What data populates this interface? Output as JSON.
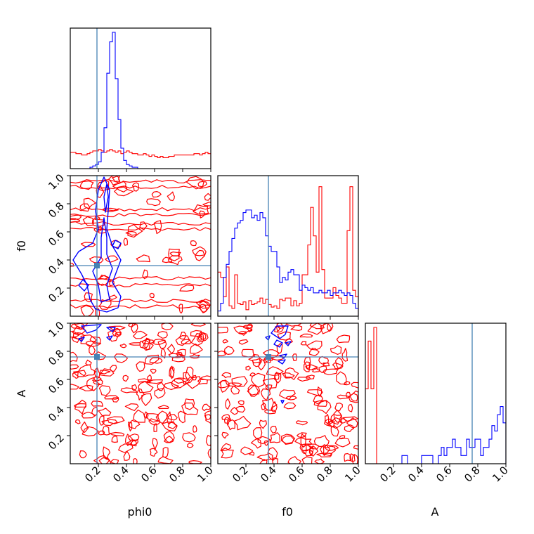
{
  "chart_data": {
    "type": "corner",
    "parameters": [
      "phi0",
      "f0",
      "A"
    ],
    "x_labels": [
      "phi0",
      "f0",
      "A"
    ],
    "y_labels": [
      "",
      "f0",
      "A"
    ],
    "range": [
      0,
      1
    ],
    "tick_labels": [
      "0.2",
      "0.4",
      "0.6",
      "0.8",
      "1.0"
    ],
    "truth": {
      "phi0": 0.19,
      "f0": 0.36,
      "A": 0.76
    },
    "truth_color": "#4682b4",
    "series": [
      {
        "color": "#0000ff"
      },
      {
        "color": "#ff0000"
      }
    ],
    "histograms": {
      "phi0": {
        "blue": [
          0,
          0,
          0,
          0,
          0,
          0,
          0,
          0.01,
          0.02,
          0.03,
          0.05,
          0.12,
          0.3,
          0.7,
          0.93,
          1.0,
          0.66,
          0.36,
          0.15,
          0.06,
          0.03,
          0.02,
          0.01,
          0.01,
          0,
          0,
          0,
          0,
          0,
          0,
          0,
          0,
          0,
          0,
          0,
          0,
          0,
          0,
          0,
          0,
          0,
          0,
          0,
          0,
          0,
          0,
          0,
          0,
          0,
          0
        ],
        "red": [
          0.12,
          0.12,
          0.11,
          0.11,
          0.1,
          0.1,
          0.11,
          0.12,
          0.13,
          0.13,
          0.14,
          0.13,
          0.12,
          0.13,
          0.14,
          0.13,
          0.12,
          0.13,
          0.11,
          0.12,
          0.13,
          0.12,
          0.11,
          0.11,
          0.1,
          0.1,
          0.11,
          0.1,
          0.09,
          0.1,
          0.09,
          0.08,
          0.09,
          0.08,
          0.08,
          0.09,
          0.09,
          0.1,
          0.1,
          0.1,
          0.1,
          0.1,
          0.1,
          0.1,
          0.11,
          0.11,
          0.1,
          0.11,
          0.12,
          0.11
        ]
      },
      "f0": {
        "blue": [
          0.04,
          0.1,
          0.3,
          0.4,
          0.5,
          0.6,
          0.68,
          0.72,
          0.74,
          0.8,
          0.82,
          0.82,
          0.76,
          0.78,
          0.74,
          0.8,
          0.76,
          0.62,
          0.54,
          0.5,
          0.5,
          0.38,
          0.26,
          0.3,
          0.28,
          0.34,
          0.36,
          0.32,
          0.32,
          0.2,
          0.24,
          0.22,
          0.2,
          0.22,
          0.18,
          0.18,
          0.2,
          0.18,
          0.18,
          0.2,
          0.16,
          0.18,
          0.18,
          0.2,
          0.18,
          0.16,
          0.18,
          0.16,
          0.1,
          0.06
        ],
        "red": [
          0.34,
          0.3,
          0.15,
          0.38,
          0.08,
          0.06,
          0.32,
          0.1,
          0.09,
          0.11,
          0.05,
          0.12,
          0.09,
          0.1,
          0.11,
          0.14,
          0.1,
          0.13,
          0.09,
          0.07,
          0.08,
          0.06,
          0.13,
          0.12,
          0.14,
          0.14,
          0.08,
          0.12,
          0.08,
          0.1,
          0.32,
          0.32,
          0.55,
          0.84,
          0.62,
          0.34,
          1.0,
          0.36,
          0.14,
          0.14,
          0.14,
          0.22,
          0.16,
          0.14,
          0.1,
          0.1,
          0.66,
          1.0,
          0.2,
          0.15
        ]
      },
      "A": {
        "blue": [
          0,
          0,
          0,
          0,
          0,
          0,
          0,
          0,
          0,
          0,
          0,
          0,
          0,
          0.06,
          0.06,
          0,
          0,
          0,
          0,
          0,
          0.06,
          0.06,
          0.06,
          0.06,
          0,
          0,
          0.06,
          0.12,
          0.06,
          0.12,
          0.12,
          0.18,
          0.12,
          0.12,
          0.06,
          0.06,
          0.18,
          0.12,
          0.12,
          0.18,
          0.18,
          0.06,
          0.12,
          0.12,
          0.18,
          0.28,
          0.24,
          0.36,
          0.42,
          0.3
        ],
        "red": [
          0.55,
          0.9,
          0.55,
          1.0,
          0,
          0,
          0,
          0,
          0,
          0,
          0,
          0,
          0,
          0,
          0,
          0,
          0,
          0,
          0,
          0,
          0,
          0,
          0,
          0,
          0,
          0,
          0,
          0,
          0,
          0,
          0,
          0,
          0,
          0,
          0,
          0,
          0,
          0,
          0,
          0,
          0,
          0,
          0,
          0,
          0,
          0,
          0,
          0,
          0,
          0
        ]
      }
    },
    "histogram_scale": {
      "phi0": 1.0,
      "f0": 0.95,
      "A": 1.0
    },
    "blue_contours": {
      "f0_vs_phi0": [
        [
          [
            0.18,
            0.05
          ],
          [
            0.14,
            0.12
          ],
          [
            0.12,
            0.22
          ],
          [
            0.08,
            0.3
          ],
          [
            0.02,
            0.4
          ],
          [
            0.06,
            0.46
          ],
          [
            0.16,
            0.52
          ],
          [
            0.2,
            0.62
          ],
          [
            0.18,
            0.75
          ],
          [
            0.2,
            0.9
          ],
          [
            0.24,
            0.99
          ],
          [
            0.28,
            0.9
          ],
          [
            0.27,
            0.75
          ],
          [
            0.26,
            0.62
          ],
          [
            0.3,
            0.5
          ],
          [
            0.36,
            0.4
          ],
          [
            0.33,
            0.32
          ],
          [
            0.3,
            0.24
          ],
          [
            0.36,
            0.14
          ],
          [
            0.34,
            0.06
          ],
          [
            0.26,
            0.03
          ],
          [
            0.18,
            0.05
          ]
        ],
        [
          [
            0.22,
            0.1
          ],
          [
            0.2,
            0.22
          ],
          [
            0.16,
            0.32
          ],
          [
            0.22,
            0.42
          ],
          [
            0.22,
            0.56
          ],
          [
            0.24,
            0.7
          ],
          [
            0.26,
            0.56
          ],
          [
            0.26,
            0.44
          ],
          [
            0.3,
            0.34
          ],
          [
            0.26,
            0.22
          ],
          [
            0.28,
            0.12
          ],
          [
            0.22,
            0.1
          ]
        ],
        [
          [
            0.26,
            0.94
          ],
          [
            0.24,
            0.85
          ],
          [
            0.25,
            0.74
          ],
          [
            0.27,
            0.85
          ],
          [
            0.26,
            0.94
          ]
        ],
        [
          [
            0.06,
            0.22
          ],
          [
            0.1,
            0.18
          ],
          [
            0.13,
            0.22
          ],
          [
            0.09,
            0.26
          ],
          [
            0.06,
            0.22
          ]
        ],
        [
          [
            0.3,
            0.5
          ],
          [
            0.34,
            0.48
          ],
          [
            0.36,
            0.52
          ],
          [
            0.32,
            0.54
          ],
          [
            0.3,
            0.5
          ]
        ]
      ],
      "A_vs_phi0": [
        [
          [
            0.08,
            0.98
          ],
          [
            0.12,
            0.93
          ],
          [
            0.18,
            0.95
          ],
          [
            0.22,
            0.99
          ],
          [
            0.08,
            0.98
          ]
        ],
        [
          [
            0.26,
            0.97
          ],
          [
            0.3,
            0.94
          ],
          [
            0.32,
            0.97
          ],
          [
            0.26,
            0.97
          ]
        ],
        [
          [
            0.06,
            0.89
          ],
          [
            0.08,
            0.87
          ],
          [
            0.1,
            0.9
          ],
          [
            0.06,
            0.89
          ]
        ],
        [
          [
            0.26,
            0.9
          ],
          [
            0.28,
            0.88
          ],
          [
            0.3,
            0.91
          ],
          [
            0.26,
            0.9
          ]
        ]
      ],
      "A_vs_f0": [
        [
          [
            0.38,
            0.93
          ],
          [
            0.42,
            0.98
          ],
          [
            0.5,
            0.98
          ],
          [
            0.48,
            0.92
          ],
          [
            0.44,
            0.89
          ],
          [
            0.38,
            0.93
          ]
        ],
        [
          [
            0.4,
            0.85
          ],
          [
            0.44,
            0.83
          ],
          [
            0.46,
            0.86
          ],
          [
            0.42,
            0.88
          ],
          [
            0.4,
            0.85
          ]
        ],
        [
          [
            0.48,
            0.86
          ],
          [
            0.5,
            0.84
          ],
          [
            0.52,
            0.87
          ],
          [
            0.48,
            0.86
          ]
        ],
        [
          [
            0.43,
            0.73
          ],
          [
            0.46,
            0.71
          ],
          [
            0.48,
            0.74
          ],
          [
            0.43,
            0.73
          ]
        ],
        [
          [
            0.44,
            0.77
          ],
          [
            0.47,
            0.75
          ],
          [
            0.49,
            0.78
          ],
          [
            0.44,
            0.77
          ]
        ],
        [
          [
            0.45,
            0.45
          ],
          [
            0.46,
            0.43
          ],
          [
            0.47,
            0.45
          ],
          [
            0.45,
            0.45
          ]
        ],
        [
          [
            0.34,
            0.9
          ],
          [
            0.36,
            0.88
          ],
          [
            0.37,
            0.91
          ],
          [
            0.34,
            0.9
          ]
        ]
      ]
    },
    "red_bands": {
      "f0_vs_phi0": [
        0.96,
        0.92,
        0.76,
        0.72,
        0.66,
        0.62,
        0.27,
        0.22,
        0.11,
        0.07
      ]
    },
    "red_noise": {
      "f0_vs_phi0": {
        "count": 60,
        "seed": 11
      },
      "A_vs_phi0": {
        "count": 150,
        "seed": 23
      },
      "A_vs_f0": {
        "count": 150,
        "seed": 37
      }
    }
  }
}
